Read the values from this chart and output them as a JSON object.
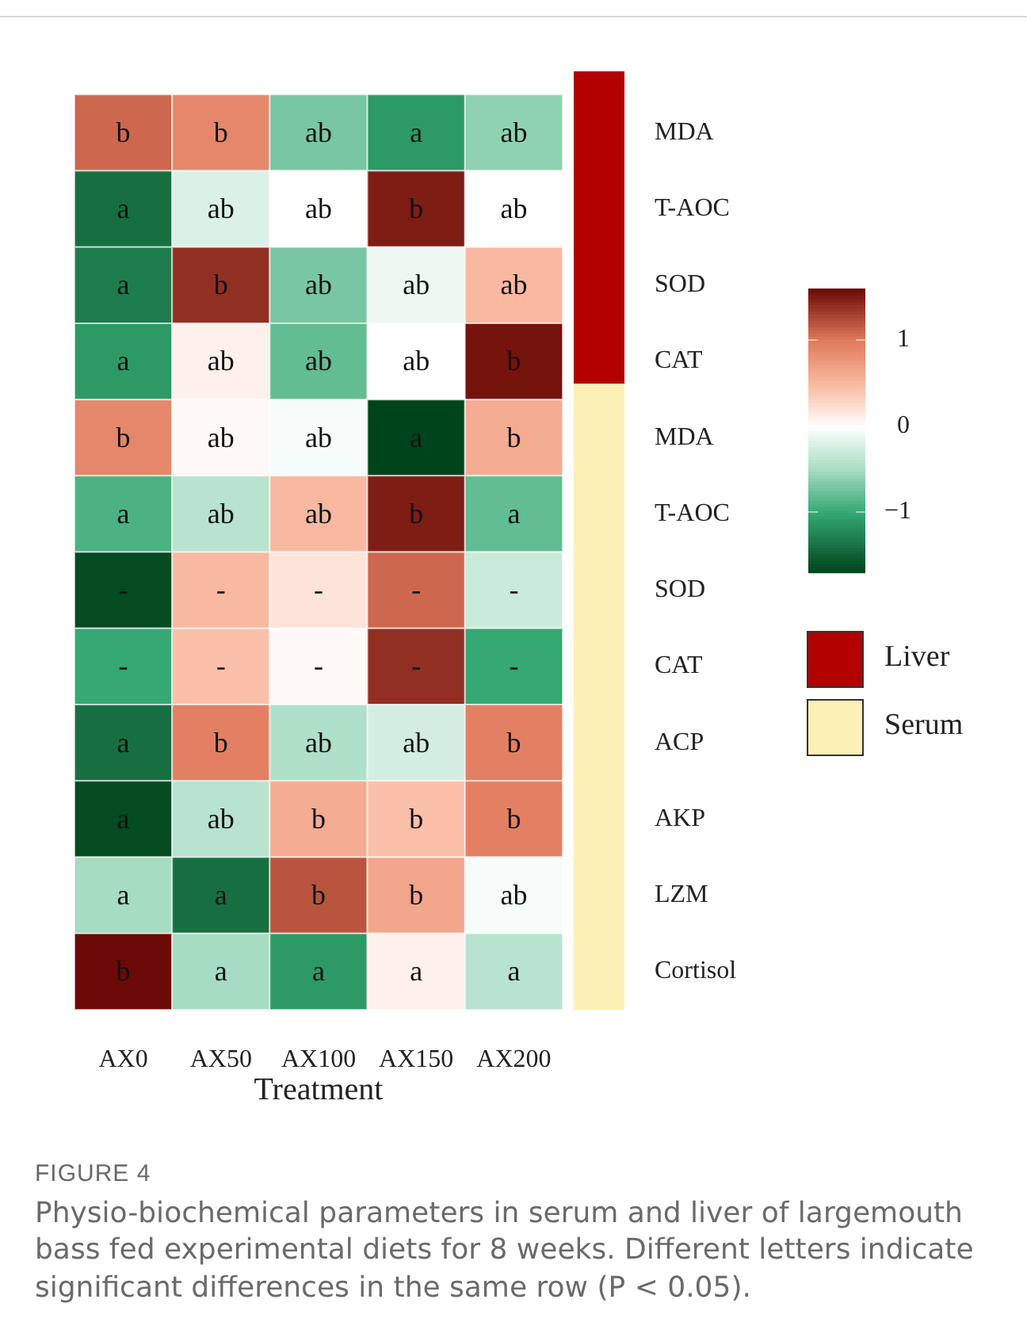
{
  "chart_data": {
    "type": "heatmap",
    "xlabel": "Treatment",
    "categories": [
      "AX0",
      "AX50",
      "AX100",
      "AX150",
      "AX200"
    ],
    "y_categories": [
      "MDA",
      "T-AOC",
      "SOD",
      "CAT",
      "MDA",
      "T-AOC",
      "SOD",
      "CAT",
      "ACP",
      "AKP",
      "LZM",
      "Cortisol"
    ],
    "cells": [
      [
        1.1,
        0.9,
        -0.7,
        -1.1,
        -0.6
      ],
      [
        -1.4,
        -0.2,
        0,
        1.5,
        0
      ],
      [
        -1.3,
        1.4,
        -0.7,
        -0.1,
        0.5
      ],
      [
        -1.1,
        0.1,
        -0.8,
        0,
        1.55
      ],
      [
        0.9,
        0.05,
        -0.05,
        -1.7,
        0.6
      ],
      [
        -0.9,
        -0.4,
        0.5,
        1.5,
        -0.8
      ],
      [
        -1.65,
        0.5,
        0.2,
        1.1,
        -0.3
      ],
      [
        -1,
        0.45,
        0.05,
        1.4,
        -1
      ],
      [
        -1.4,
        0.95,
        -0.45,
        -0.25,
        0.95
      ],
      [
        -1.65,
        -0.4,
        0.6,
        0.45,
        0.95
      ],
      [
        -0.5,
        -1.4,
        1.2,
        0.65,
        -0.05
      ],
      [
        1.6,
        -0.5,
        -1.1,
        0.1,
        -0.4
      ]
    ],
    "cell_labels": [
      [
        "b",
        "b",
        "ab",
        "a",
        "ab"
      ],
      [
        "a",
        "ab",
        "ab",
        "b",
        "ab"
      ],
      [
        "a",
        "b",
        "ab",
        "ab",
        "ab"
      ],
      [
        "a",
        "ab",
        "ab",
        "ab",
        "b"
      ],
      [
        "b",
        "ab",
        "ab",
        "a",
        "b"
      ],
      [
        "a",
        "ab",
        "ab",
        "b",
        "a"
      ],
      [
        "-",
        "-",
        "-",
        "-",
        "-"
      ],
      [
        "-",
        "-",
        "-",
        "-",
        "-"
      ],
      [
        "a",
        "b",
        "ab",
        "ab",
        "b"
      ],
      [
        "a",
        "ab",
        "b",
        "b",
        "b"
      ],
      [
        "a",
        "a",
        "b",
        "b",
        "ab"
      ],
      [
        "b",
        "a",
        "a",
        "a",
        "a"
      ]
    ],
    "clim": [
      -1.7,
      1.6
    ],
    "cticks": [
      {
        "value": 1,
        "label": "1"
      },
      {
        "value": 0,
        "label": "0"
      },
      {
        "value": -1,
        "label": "−1"
      }
    ],
    "annotations": [
      "Liver",
      "Serum",
      "FIGURE 4",
      "Physio-biochemical parameters in serum and liver of largemouth bass fed experimental diets for 8 weeks. Different letters indicate significant differences in the same row (P < 0.05)."
    ]
  }
}
